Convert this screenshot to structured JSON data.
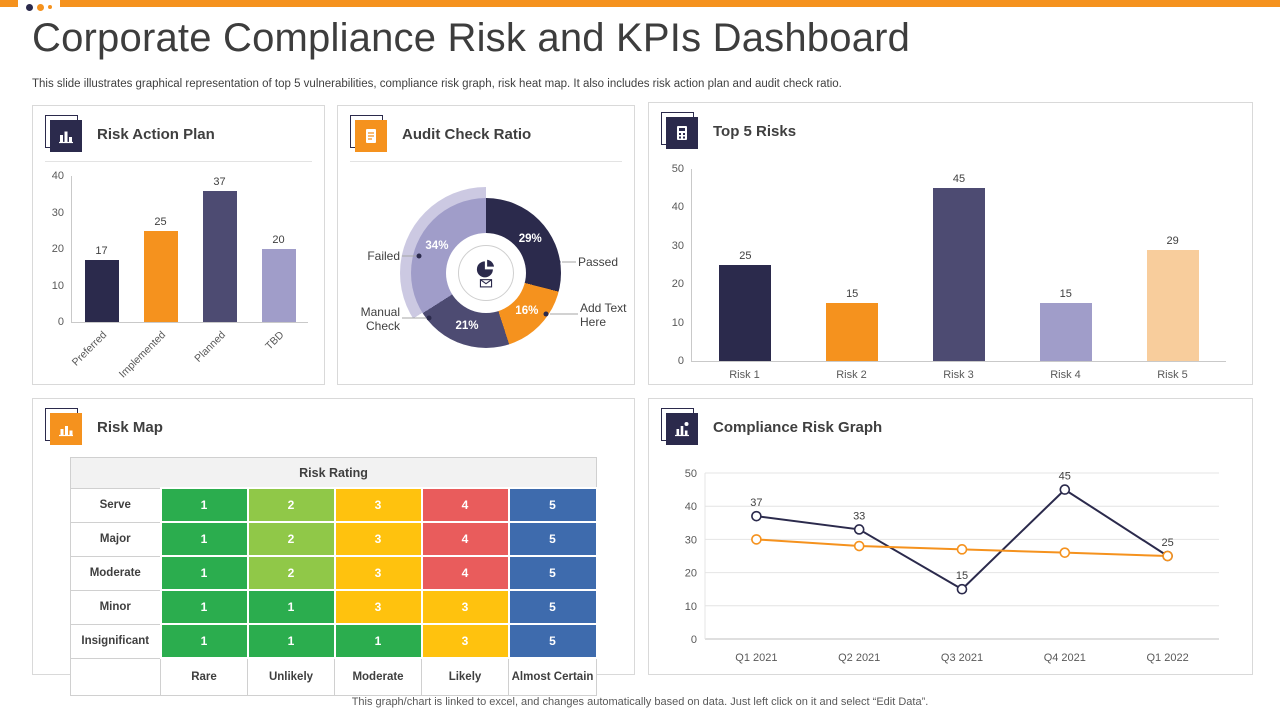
{
  "page": {
    "title": "Corporate Compliance Risk and KPIs Dashboard",
    "subtitle": "This slide illustrates graphical representation of top 5 vulnerabilities, compliance risk graph, risk heat map. It also includes risk action plan and audit check ratio.",
    "footer": "This graph/chart is linked to excel, and changes automatically based on data. Just left click on it and select “Edit Data”."
  },
  "colors": {
    "accent_orange": "#F5921E",
    "dark_navy": "#2B2A4C",
    "slate_purple": "#4D4B72",
    "light_purple": "#A09DC9",
    "peach": "#F8CD9C"
  },
  "panels": {
    "risk_action_plan": {
      "title": "Risk Action Plan"
    },
    "audit_check_ratio": {
      "title": "Audit Check Ratio"
    },
    "top_5_risks": {
      "title": "Top 5 Risks"
    },
    "risk_map": {
      "title": "Risk Map"
    },
    "compliance_risk_graph": {
      "title": "Compliance Risk Graph"
    }
  },
  "chart_data": [
    {
      "id": "risk_action_plan",
      "type": "bar",
      "title": "Risk Action Plan",
      "categories": [
        "Preferred",
        "Implemented",
        "Planned",
        "TBD"
      ],
      "values": [
        17,
        25,
        37,
        20
      ],
      "colors": [
        "#2B2A4C",
        "#F5921E",
        "#4D4B72",
        "#A09DC9"
      ],
      "ylim": [
        0,
        40
      ],
      "yticks": [
        0,
        10,
        20,
        30,
        40
      ]
    },
    {
      "id": "audit_check_ratio",
      "type": "pie",
      "title": "Audit Check Ratio",
      "segments": [
        {
          "label": "Passed",
          "value": 29,
          "color": "#2B2A4C"
        },
        {
          "label": "Add Text Here",
          "value": 16,
          "color": "#F5921E"
        },
        {
          "label": "Manual Check",
          "value": 21,
          "color": "#4D4B72"
        },
        {
          "label": "Failed",
          "value": 34,
          "color": "#A09DC9"
        }
      ]
    },
    {
      "id": "top_5_risks",
      "type": "bar",
      "title": "Top 5 Risks",
      "categories": [
        "Risk 1",
        "Risk 2",
        "Risk 3",
        "Risk 4",
        "Risk 5"
      ],
      "values": [
        25,
        15,
        45,
        15,
        29
      ],
      "colors": [
        "#2B2A4C",
        "#F5921E",
        "#4D4B72",
        "#A09DC9",
        "#F8CD9C"
      ],
      "ylim": [
        0,
        50
      ],
      "yticks": [
        0,
        10,
        20,
        30,
        40,
        50
      ]
    },
    {
      "id": "risk_map",
      "type": "heatmap",
      "title": "Risk Rating",
      "row_labels": [
        "Serve",
        "Major",
        "Moderate",
        "Minor",
        "Insignificant"
      ],
      "col_labels": [
        "Rare",
        "Unlikely",
        "Moderate",
        "Likely",
        "Almost Certain"
      ],
      "values": [
        [
          1,
          2,
          3,
          4,
          5
        ],
        [
          1,
          2,
          3,
          4,
          5
        ],
        [
          1,
          2,
          3,
          4,
          5
        ],
        [
          1,
          1,
          3,
          3,
          5
        ],
        [
          1,
          1,
          1,
          3,
          5
        ]
      ],
      "value_colors": {
        "1": "#2BAD4E",
        "2": "#90C848",
        "3": "#FFC20E",
        "4": "#E95C5C",
        "5": "#3E6BAD"
      }
    },
    {
      "id": "compliance_risk_graph",
      "type": "line",
      "title": "Compliance Risk Graph",
      "x": [
        "Q1 2021",
        "Q2 2021",
        "Q3 2021",
        "Q4 2021",
        "Q1 2022"
      ],
      "series": [
        {
          "name": "risk-series-dark",
          "values": [
            37,
            33,
            15,
            45,
            25
          ],
          "color": "#2B2A4C",
          "labels": true
        },
        {
          "name": "risk-series-orange",
          "values": [
            30,
            28,
            27,
            26,
            25
          ],
          "color": "#F5921E",
          "labels": false
        }
      ],
      "ylim": [
        0,
        50
      ],
      "yticks": [
        0,
        10,
        20,
        30,
        40,
        50
      ],
      "grid": true,
      "legend": "none"
    }
  ]
}
